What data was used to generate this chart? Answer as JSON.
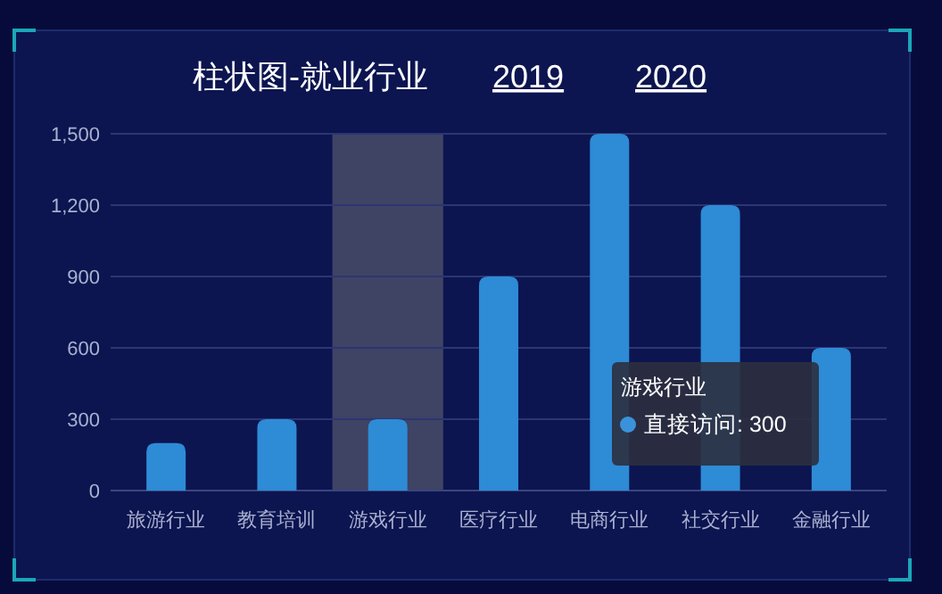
{
  "chart_data": {
    "type": "bar",
    "title": "柱状图-就业行业",
    "categories": [
      "旅游行业",
      "教育培训",
      "游戏行业",
      "医疗行业",
      "电商行业",
      "社交行业",
      "金融行业"
    ],
    "values": [
      200,
      300,
      300,
      900,
      1500,
      1200,
      600
    ],
    "color": "#2e8bd6",
    "ylim": [
      0,
      1500
    ],
    "yticks": [
      0,
      300,
      600,
      900,
      {
        "value": 1200,
        "label": "1,200"
      },
      {
        "value": 1500,
        "label": "1,500"
      }
    ],
    "grid": "y",
    "bands": [
      {
        "axis": "x",
        "from": "游戏行业",
        "to": "游戏行业",
        "color": "#454866"
      }
    ],
    "annotations": [
      "2019",
      "2020",
      "游戏行业",
      "直接访问: 300"
    ]
  }
}
